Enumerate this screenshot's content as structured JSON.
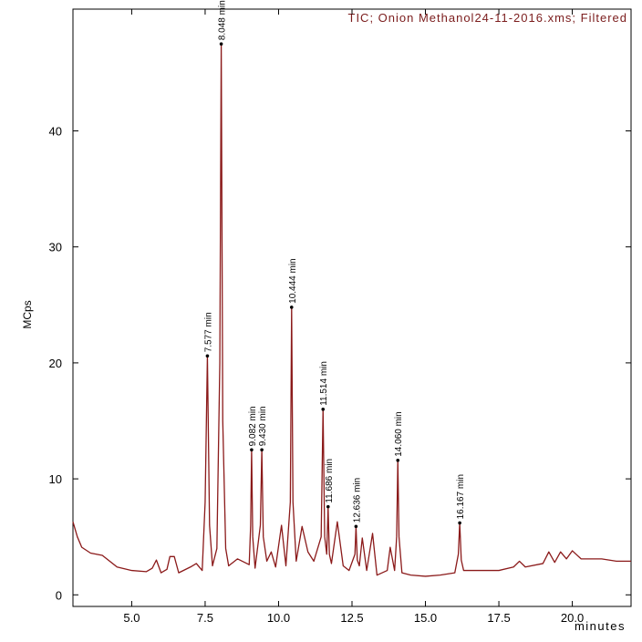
{
  "chart_data": {
    "type": "line",
    "title": "TIC; Onion Methanol24-11-2016.xms; Filtered",
    "xlabel": "minutes",
    "ylabel": "MCps",
    "color": "#8b1a1a",
    "x": [
      3.0,
      3.15,
      3.3,
      3.6,
      4.0,
      4.5,
      5.0,
      5.5,
      5.7,
      5.84,
      6.0,
      6.2,
      6.3,
      6.45,
      6.6,
      7.0,
      7.2,
      7.4,
      7.5,
      7.577,
      7.65,
      7.75,
      7.9,
      8.0,
      8.048,
      8.1,
      8.2,
      8.3,
      8.6,
      9.0,
      9.05,
      9.082,
      9.12,
      9.2,
      9.38,
      9.43,
      9.48,
      9.6,
      9.75,
      9.9,
      10.1,
      10.25,
      10.4,
      10.444,
      10.49,
      10.6,
      10.8,
      11.0,
      11.2,
      11.45,
      11.514,
      11.57,
      11.64,
      11.686,
      11.73,
      11.8,
      12.0,
      12.2,
      12.4,
      12.6,
      12.636,
      12.68,
      12.75,
      12.85,
      13.0,
      13.2,
      13.35,
      13.7,
      13.8,
      13.95,
      14.02,
      14.06,
      14.1,
      14.2,
      14.5,
      15.0,
      15.5,
      16.0,
      16.12,
      16.167,
      16.22,
      16.3,
      16.8,
      17.5,
      18.0,
      18.2,
      18.4,
      19.0,
      19.2,
      19.4,
      19.6,
      19.8,
      20.0,
      20.3,
      21.0,
      21.5,
      22.0
    ],
    "values": [
      6.3,
      5.0,
      4.1,
      3.6,
      3.4,
      2.4,
      2.1,
      2.0,
      2.3,
      3.0,
      1.9,
      2.2,
      3.3,
      3.3,
      1.9,
      2.4,
      2.7,
      2.1,
      8.0,
      20.6,
      6.0,
      2.5,
      4.0,
      20.0,
      47.5,
      15.0,
      4.0,
      2.5,
      3.1,
      2.6,
      6.0,
      12.5,
      5.0,
      2.3,
      6.0,
      12.5,
      5.0,
      2.9,
      3.7,
      2.4,
      6.0,
      2.5,
      8.0,
      24.8,
      8.0,
      2.9,
      5.9,
      3.7,
      2.9,
      5.0,
      16.0,
      5.0,
      3.5,
      7.6,
      3.5,
      2.7,
      6.3,
      2.5,
      2.1,
      3.5,
      5.9,
      3.0,
      2.5,
      4.9,
      2.1,
      5.3,
      1.7,
      2.1,
      4.1,
      2.1,
      5.0,
      11.6,
      5.0,
      1.9,
      1.7,
      1.6,
      1.7,
      1.9,
      3.5,
      6.2,
      3.0,
      2.1,
      2.1,
      2.1,
      2.4,
      2.9,
      2.4,
      2.7,
      3.7,
      2.8,
      3.7,
      3.1,
      3.8,
      3.1,
      3.1,
      2.9,
      2.9
    ],
    "peaks": [
      {
        "x": 7.577,
        "y": 20.6,
        "label": "7.577 min"
      },
      {
        "x": 8.048,
        "y": 47.5,
        "label": "8.048 min"
      },
      {
        "x": 9.082,
        "y": 12.5,
        "label": "9.082 min"
      },
      {
        "x": 9.43,
        "y": 12.5,
        "label": "9.430 min"
      },
      {
        "x": 10.444,
        "y": 24.8,
        "label": "10.444 min"
      },
      {
        "x": 11.514,
        "y": 16.0,
        "label": "11.514 min"
      },
      {
        "x": 11.686,
        "y": 7.6,
        "label": "11.686 min"
      },
      {
        "x": 12.636,
        "y": 5.9,
        "label": "12.636 min"
      },
      {
        "x": 14.06,
        "y": 11.6,
        "label": "14.060 min"
      },
      {
        "x": 16.167,
        "y": 6.2,
        "label": "16.167 min"
      }
    ],
    "xlim": [
      3.0,
      22.0
    ],
    "xticks": [
      {
        "value": 5,
        "label": "5.0"
      },
      {
        "value": 7.5,
        "label": "7.5"
      },
      {
        "value": 10,
        "label": "10.0"
      },
      {
        "value": 12.5,
        "label": "12.5"
      },
      {
        "value": 15,
        "label": "15.0"
      },
      {
        "value": 17.5,
        "label": "17.5"
      },
      {
        "value": 20,
        "label": "20.0"
      }
    ],
    "ylim": [
      -1,
      50.5
    ],
    "yticks": [
      0,
      10,
      20,
      30,
      40
    ],
    "grid": false
  }
}
